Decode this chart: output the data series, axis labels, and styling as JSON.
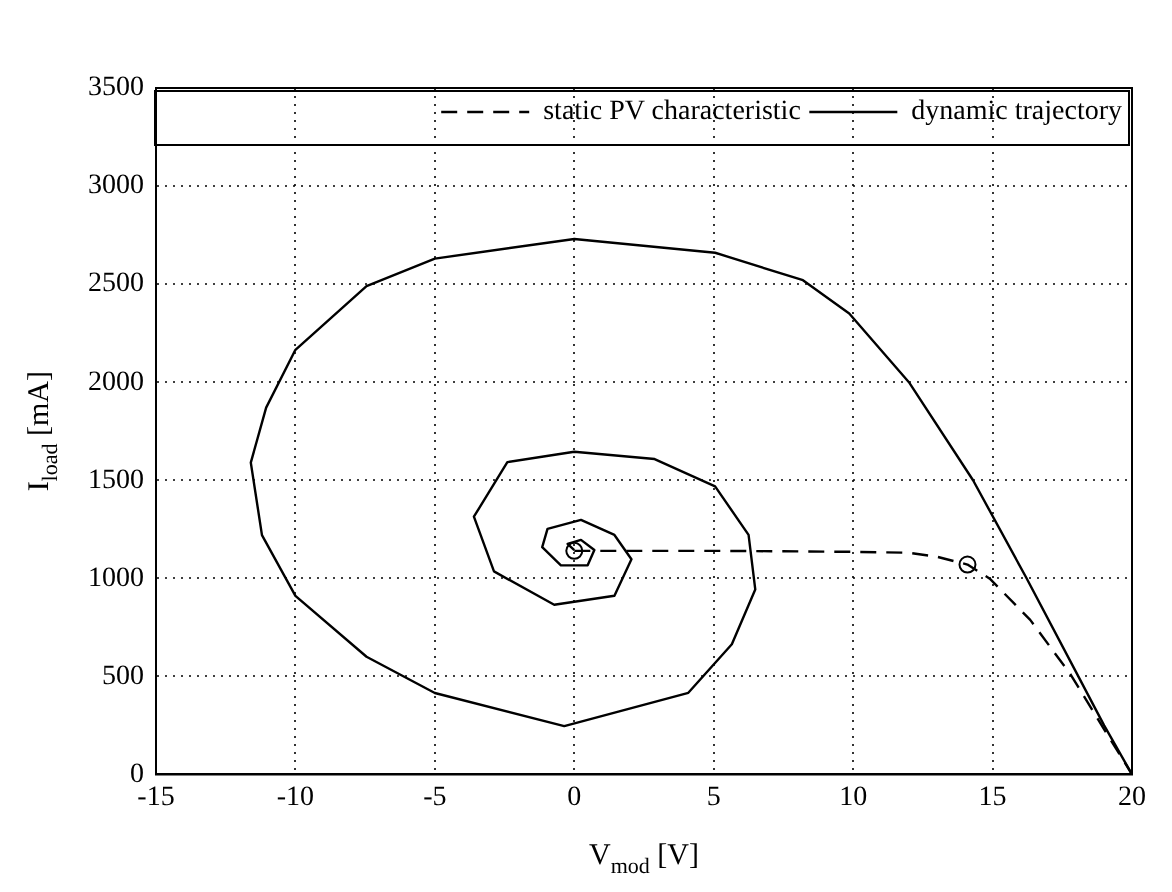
{
  "chart_data": {
    "type": "line",
    "xlabel": "V$_{mod}$ [V]",
    "ylabel": "I$_{load}$ [mA]",
    "xlim": [
      -15,
      20
    ],
    "xticks": [
      -15,
      -10,
      -5,
      0,
      5,
      10,
      15,
      20
    ],
    "ylim": [
      0,
      3500
    ],
    "yticks": [
      0,
      500,
      1000,
      1500,
      2000,
      2500,
      3000,
      3500
    ],
    "grid": true,
    "legend": "top right",
    "series": [
      {
        "name": "static PV characteristic",
        "color": "#000000",
        "line_style": "dashed",
        "marker": "none",
        "x": [
          0,
          5,
          10,
          12,
          13,
          14.1,
          14.9,
          16.35,
          17.8,
          19,
          20
        ],
        "values": [
          1140,
          1140,
          1135,
          1130,
          1110,
          1070,
          998,
          788,
          509,
          230,
          0
        ]
      },
      {
        "name": "dynamic trajectory",
        "color": "#000000",
        "line_style": "solid",
        "marker": "none",
        "x": [
          20,
          19,
          18,
          16.2,
          14.3,
          12,
          9.86,
          8.2,
          5.05,
          0,
          -5,
          -7.45,
          -10,
          -11.05,
          -11.6,
          -11.2,
          -10,
          -7.45,
          -5,
          -0.36,
          4.09,
          5.65,
          6.49,
          6.25,
          5.05,
          2.88,
          0,
          -2.4,
          -3.6,
          -2.88,
          -0.72,
          1.44,
          2.05,
          1.44,
          0.24,
          -0.96,
          -1.15,
          -0.48,
          0.48,
          0.72,
          0.24,
          -0.24,
          0
        ],
        "values": [
          0,
          250,
          520,
          1005,
          1500,
          2000,
          2350,
          2520,
          2660,
          2730,
          2630,
          2490,
          2165,
          1870,
          1590,
          1220,
          910,
          600,
          415,
          246,
          416,
          664,
          943,
          1221,
          1469,
          1608,
          1645,
          1592,
          1314,
          1035,
          865,
          911,
          1097,
          1221,
          1298,
          1252,
          1159,
          1066,
          1066,
          1144,
          1196,
          1175,
          1144
        ]
      },
      {
        "type": "scatter",
        "color": "#000000",
        "marker": "circle",
        "x": [
          0,
          14.1
        ],
        "values": [
          1140,
          1070
        ]
      }
    ]
  }
}
